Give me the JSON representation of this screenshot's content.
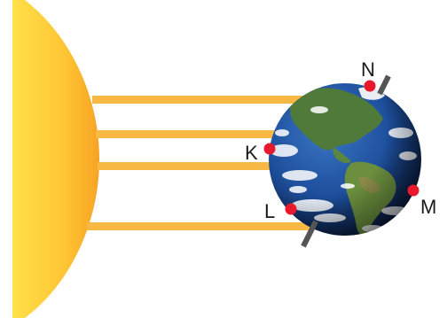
{
  "points": {
    "n": "N",
    "k": "K",
    "l": "L",
    "m": "M"
  },
  "colors": {
    "sun_inner": "#ffd93a",
    "sun_outer": "#f5a623",
    "ray": "#f7b944",
    "marker": "#e8192c",
    "axis": "#555555",
    "ocean_dark": "#0b1e4a",
    "ocean": "#1d4f9c",
    "land": "#4f7a3a",
    "cloud": "#ffffff"
  }
}
